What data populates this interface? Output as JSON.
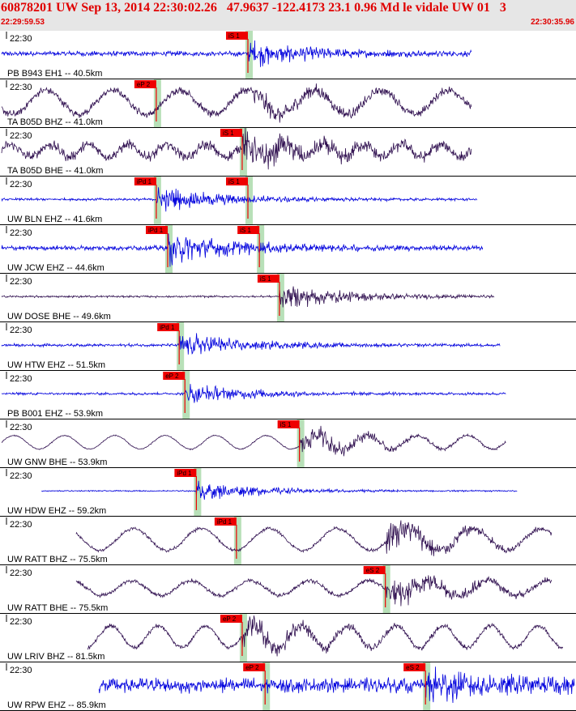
{
  "header": {
    "title": "60878201 UW Sep 13, 2014 22:30:02.26   47.9637 -122.4173 23.1 0.96 Md le vidale UW 01   3",
    "start_time": "22:29:59.53",
    "end_time": "22:30:35.96"
  },
  "colors": {
    "header_bg": "#e6e6e6",
    "header_text": "#e00000",
    "trace_blue": "#0000dd",
    "trace_purple": "#301050",
    "pick_box": "#ee0000",
    "pick_window": "#b8e0b8"
  },
  "chart_data": {
    "type": "line",
    "title": "60878201 UW Sep 13, 2014 22:30:02.26   47.9637 -122.4173 23.1 0.96 Md le vidale UW 01   3",
    "x_range": [
      "22:29:59.53",
      "22:30:35.96"
    ],
    "tick_label": "22:30",
    "series": [
      {
        "name": "PB B943 EH1 -- 40.5km",
        "tick": "22:30",
        "color": "blue",
        "start": 0.0,
        "end": 0.82,
        "style": "quake",
        "noise": 0.12,
        "event": 0.43,
        "event_amp": 0.55,
        "picks": [
          {
            "label": "iS 1",
            "t": 0.43
          }
        ]
      },
      {
        "name": "TA B05D BHZ -- 41.0km",
        "tick": "22:30",
        "color": "purple",
        "start": 0.0,
        "end": 0.82,
        "style": "wave",
        "noise": 0.18,
        "wave_amp": 0.5,
        "wave_cycles": 7,
        "event": 0.44,
        "event_amp": 0.4,
        "picks": [
          {
            "label": "eP 2",
            "t": 0.27
          }
        ]
      },
      {
        "name": "TA B05D BHE -- 41.0km",
        "tick": "22:30",
        "color": "purple",
        "start": 0.0,
        "end": 0.82,
        "style": "wave",
        "noise": 0.25,
        "wave_amp": 0.25,
        "wave_cycles": 12,
        "event": 0.42,
        "event_amp": 0.6,
        "picks": [
          {
            "label": "iS 1",
            "t": 0.42
          }
        ]
      },
      {
        "name": "UW BLN EHZ -- 41.6km",
        "tick": "22:30",
        "color": "blue",
        "start": 0.0,
        "end": 0.83,
        "style": "quake",
        "noise": 0.06,
        "event": 0.27,
        "event_amp": 0.6,
        "picks": [
          {
            "label": "iPd 1",
            "t": 0.27
          },
          {
            "label": "iS 1",
            "t": 0.43
          }
        ]
      },
      {
        "name": "UW JCW EHZ -- 44.6km",
        "tick": "22:30",
        "color": "blue",
        "start": 0.0,
        "end": 0.84,
        "style": "quake",
        "noise": 0.12,
        "event": 0.29,
        "event_amp": 0.7,
        "picks": [
          {
            "label": "iPd 1",
            "t": 0.29
          },
          {
            "label": "iS 1",
            "t": 0.45
          }
        ]
      },
      {
        "name": "UW DOSE BHE -- 49.6km",
        "tick": "22:30",
        "color": "purple",
        "start": 0.0,
        "end": 0.86,
        "style": "quake",
        "noise": 0.05,
        "event": 0.485,
        "event_amp": 0.6,
        "picks": [
          {
            "label": "iS 1",
            "t": 0.485
          }
        ]
      },
      {
        "name": "UW HTW EHZ -- 51.5km",
        "tick": "22:30",
        "color": "blue",
        "start": 0.0,
        "end": 0.87,
        "style": "quake",
        "noise": 0.07,
        "event": 0.31,
        "event_amp": 0.6,
        "picks": [
          {
            "label": "iPd 1",
            "t": 0.31
          }
        ]
      },
      {
        "name": "PB B001 EHZ -- 53.9km",
        "tick": "22:30",
        "color": "blue",
        "start": 0.0,
        "end": 0.88,
        "style": "quake",
        "noise": 0.06,
        "event": 0.32,
        "event_amp": 0.5,
        "picks": [
          {
            "label": "eP 2",
            "t": 0.32
          }
        ]
      },
      {
        "name": "UW GNW BHE -- 53.9km",
        "tick": "22:30",
        "color": "purple",
        "start": 0.0,
        "end": 0.88,
        "style": "wave",
        "noise": 0.03,
        "wave_amp": 0.28,
        "wave_cycles": 10,
        "event": 0.52,
        "event_amp": 0.6,
        "picks": [
          {
            "label": "iS 1",
            "t": 0.52
          }
        ]
      },
      {
        "name": "UW HDW EHZ -- 59.2km",
        "tick": "22:30",
        "color": "blue",
        "start": 0.07,
        "end": 0.9,
        "style": "quake",
        "noise": 0.03,
        "event": 0.34,
        "event_amp": 0.5,
        "picks": [
          {
            "label": "iPd 1",
            "t": 0.34
          }
        ]
      },
      {
        "name": "UW RATT BHZ -- 75.5km",
        "tick": "22:30",
        "color": "purple",
        "start": 0.13,
        "end": 0.96,
        "style": "wave",
        "noise": 0.08,
        "wave_amp": 0.45,
        "wave_cycles": 7,
        "event": 0.67,
        "event_amp": 0.7,
        "picks": [
          {
            "label": "iPd 1",
            "t": 0.41
          }
        ]
      },
      {
        "name": "UW RATT BHE -- 75.5km",
        "tick": "22:30",
        "color": "purple",
        "start": 0.13,
        "end": 0.96,
        "style": "wave",
        "noise": 0.1,
        "wave_amp": 0.3,
        "wave_cycles": 8,
        "event": 0.67,
        "event_amp": 0.7,
        "picks": [
          {
            "label": "eS 2",
            "t": 0.67
          }
        ]
      },
      {
        "name": "UW LRIV BHZ -- 81.5km",
        "tick": "22:30",
        "color": "purple",
        "start": 0.15,
        "end": 0.98,
        "style": "wave",
        "noise": 0.1,
        "wave_amp": 0.45,
        "wave_cycles": 10,
        "event": 0.42,
        "event_amp": 0.6,
        "picks": [
          {
            "label": "eP 2",
            "t": 0.42
          }
        ]
      },
      {
        "name": "UW RPW EHZ -- 85.9km",
        "tick": "22:30",
        "color": "blue",
        "start": 0.17,
        "end": 1.0,
        "style": "quake",
        "noise": 0.35,
        "event": 0.74,
        "event_amp": 0.6,
        "picks": [
          {
            "label": "eP 2",
            "t": 0.46
          },
          {
            "label": "eS 2",
            "t": 0.74
          }
        ]
      }
    ]
  }
}
